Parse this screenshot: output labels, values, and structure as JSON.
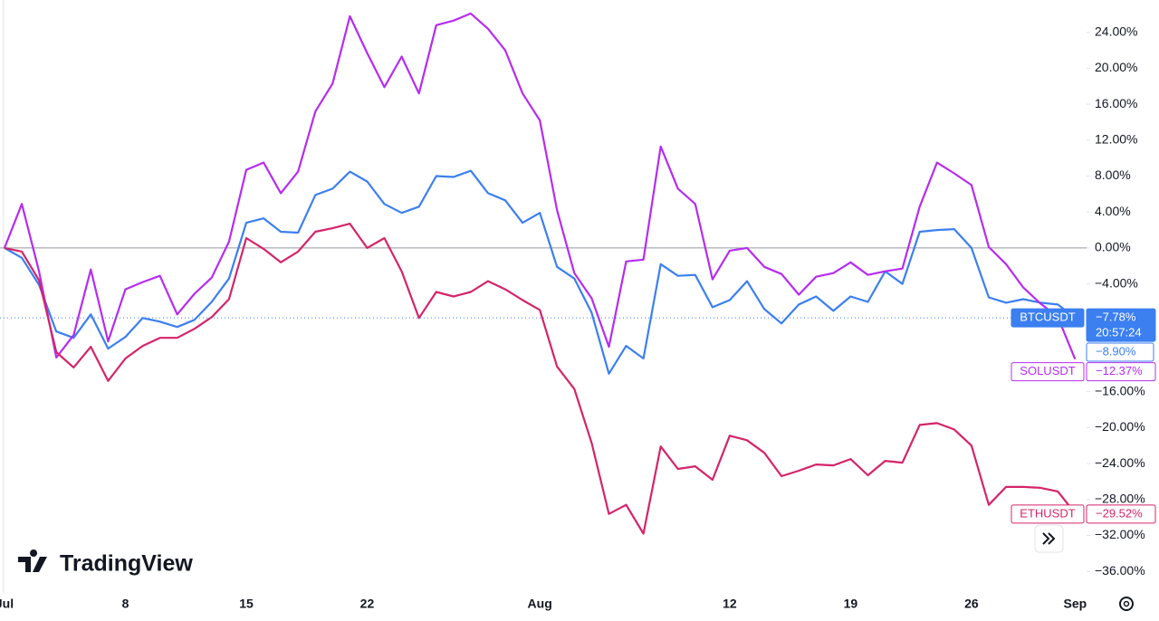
{
  "chart_data": {
    "type": "line",
    "watermark": "TradingView",
    "countdown": "20:57:24",
    "crosshair_label": "−8.90%",
    "categories": [
      "Jul",
      null,
      null,
      null,
      null,
      null,
      null,
      "8",
      null,
      null,
      null,
      null,
      null,
      null,
      "15",
      null,
      null,
      null,
      null,
      null,
      null,
      "22",
      null,
      null,
      null,
      null,
      null,
      null,
      null,
      null,
      null,
      "Aug",
      null,
      null,
      null,
      null,
      null,
      null,
      null,
      null,
      null,
      null,
      "12",
      null,
      null,
      null,
      null,
      null,
      null,
      "19",
      null,
      null,
      null,
      null,
      null,
      null,
      "26",
      null,
      null,
      null,
      null,
      null,
      "Sep"
    ],
    "series": [
      {
        "name": "BTCUSDT",
        "color": "#3b7ff0",
        "last_label": "−7.78%",
        "values": [
          0,
          -1.1,
          -4.1,
          -9.3,
          -10.0,
          -7.4,
          -11.2,
          -9.9,
          -7.8,
          -8.2,
          -8.8,
          -8.0,
          -6.0,
          -3.4,
          2.8,
          3.3,
          1.8,
          1.7,
          5.9,
          6.6,
          8.5,
          7.4,
          4.9,
          3.9,
          4.6,
          8.0,
          7.9,
          8.6,
          6.1,
          5.3,
          2.8,
          3.9,
          -2.1,
          -3.4,
          -7.2,
          -14.0,
          -10.9,
          -12.3,
          -1.8,
          -3.1,
          -3.0,
          -6.6,
          -5.8,
          -3.7,
          -6.8,
          -8.4,
          -6.3,
          -5.4,
          -7.0,
          -5.4,
          -6.0,
          -2.6,
          -4.0,
          1.8,
          2.0,
          2.1,
          0,
          -5.5,
          -6.1,
          -5.7,
          -6.1,
          -6.3,
          -7.78
        ]
      },
      {
        "name": "SOLUSDT",
        "color": "#b62cf0",
        "last_label": "−12.37%",
        "values": [
          0,
          4.9,
          -2.6,
          -12.2,
          -9.7,
          -2.4,
          -10.4,
          -4.6,
          -3.8,
          -3.1,
          -7.4,
          -5.1,
          -3.3,
          0.7,
          8.7,
          9.5,
          6.1,
          8.5,
          15.2,
          18.3,
          25.8,
          21.7,
          17.9,
          21.3,
          17.2,
          24.8,
          25.3,
          26.1,
          24.4,
          22.0,
          17.2,
          14.2,
          4.2,
          -2.8,
          -5.6,
          -11.0,
          -1.5,
          -1.3,
          11.3,
          6.6,
          4.9,
          -3.5,
          -0.3,
          0,
          -2.1,
          -2.9,
          -5.2,
          -3.2,
          -2.8,
          -1.6,
          -3.0,
          -2.6,
          -2.3,
          4.6,
          9.5,
          8.3,
          7.0,
          0.1,
          -1.8,
          -4.4,
          -6.2,
          -7.7,
          -12.37
        ]
      },
      {
        "name": "ETHUSDT",
        "color": "#d4246a",
        "last_label": "−29.52%",
        "values": [
          0,
          -0.4,
          -3.6,
          -11.6,
          -13.3,
          -11.0,
          -14.8,
          -12.3,
          -10.9,
          -10.0,
          -10.0,
          -9.0,
          -7.7,
          -5.7,
          1.1,
          -0.1,
          -1.6,
          -0.4,
          1.8,
          2.2,
          2.7,
          0,
          1.1,
          -2.6,
          -7.8,
          -4.9,
          -5.4,
          -4.9,
          -3.7,
          -4.6,
          -5.8,
          -6.9,
          -13.2,
          -15.7,
          -21.7,
          -29.6,
          -28.6,
          -31.8,
          -22.1,
          -24.6,
          -24.3,
          -25.8,
          -20.9,
          -21.4,
          -22.8,
          -25.4,
          -24.8,
          -24.1,
          -24.2,
          -23.5,
          -25.3,
          -23.7,
          -23.9,
          -19.7,
          -19.5,
          -20.2,
          -22.0,
          -28.6,
          -26.6,
          -26.6,
          -26.7,
          -27.1,
          -29.52
        ]
      }
    ],
    "ylim": [
      -38.4,
      27.6
    ],
    "yticks": [
      {
        "value": 24,
        "label": "24.00%"
      },
      {
        "value": 20,
        "label": "20.00%"
      },
      {
        "value": 16,
        "label": "16.00%"
      },
      {
        "value": 12,
        "label": "12.00%"
      },
      {
        "value": 8,
        "label": "8.00%"
      },
      {
        "value": 4,
        "label": "4.00%"
      },
      {
        "value": 0,
        "label": "0.00%"
      },
      {
        "value": -4,
        "label": "−4.00%"
      },
      {
        "value": -8,
        "label": "−8.00%"
      },
      {
        "value": -12,
        "label": "−12.00%"
      },
      {
        "value": -16,
        "label": "−16.00%"
      },
      {
        "value": -20,
        "label": "−20.00%"
      },
      {
        "value": -24,
        "label": "−24.00%"
      },
      {
        "value": -28,
        "label": "−28.00%"
      },
      {
        "value": -32,
        "label": "−32.00%"
      },
      {
        "value": -36,
        "label": "−36.00%"
      }
    ],
    "grid": false
  }
}
